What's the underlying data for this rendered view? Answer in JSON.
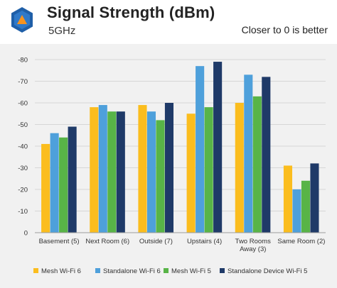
{
  "header": {
    "title": "Signal Strength (dBm)",
    "subtitle": "5GHz",
    "note": "Closer to 0 is better"
  },
  "colors": {
    "Mesh Wi-Fi 6": "#fbbd1e",
    "Standalone Wi-Fi 6": "#4ea0db",
    "Mesh Wi-Fi 5": "#58b447",
    "Standalone Device Wi-Fi 5": "#1f3a68"
  },
  "chart_data": {
    "type": "bar",
    "title": "Signal Strength (dBm)",
    "subtitle": "5GHz",
    "annotation": "Closer to 0 is better",
    "categories": [
      [
        "Basement (5)"
      ],
      [
        "Next Room (6)"
      ],
      [
        "Outside (7)"
      ],
      [
        "Upstairs (4)"
      ],
      [
        "Two Rooms",
        "Away (3)"
      ],
      [
        "Same Room (2)"
      ]
    ],
    "series": [
      {
        "name": "Mesh Wi-Fi 6",
        "values": [
          -41,
          -58,
          -59,
          -55,
          -60,
          -31
        ]
      },
      {
        "name": "Standalone Wi-Fi 6",
        "values": [
          -46,
          -59,
          -56,
          -77,
          -73,
          -20
        ]
      },
      {
        "name": "Mesh Wi-Fi 5",
        "values": [
          -44,
          -56,
          -52,
          -58,
          -63,
          -24
        ]
      },
      {
        "name": "Standalone Device Wi-Fi 5",
        "values": [
          -49,
          -56,
          -60,
          -79,
          -72,
          -32
        ]
      }
    ],
    "ylim": [
      0,
      -80
    ],
    "yticks": [
      "-80",
      "-70",
      "-60",
      "-50",
      "-40",
      "-30",
      "-20",
      "-10",
      "0"
    ],
    "ytick_values": [
      -80,
      -70,
      -60,
      -50,
      -40,
      -30,
      -20,
      -10,
      0
    ],
    "grid": true,
    "legend": "bottom"
  }
}
